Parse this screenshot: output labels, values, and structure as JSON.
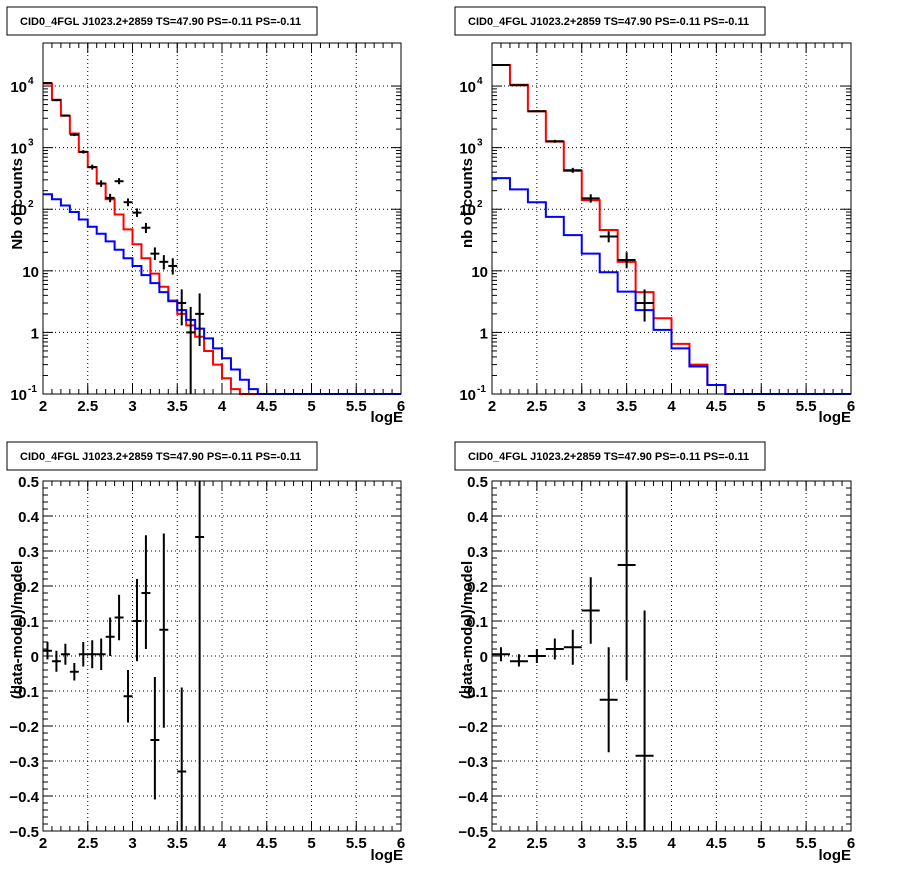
{
  "colors": {
    "data": "#000000",
    "total_model": "#ff0000",
    "source_model": "#0000ff",
    "grid": "#000000",
    "background": "#ffffff"
  },
  "chart_data": [
    {
      "type": "line",
      "title": "CID0_4FGL J1023.2+2859 TS=47.90 PS=-0.11 PS=-0.11",
      "xlabel": "logE",
      "ylabel": "Nb of counts",
      "log_y": true,
      "xlim": [
        2,
        6
      ],
      "ylim": [
        0.1,
        50000
      ],
      "x_ticks": [
        "2",
        "2.5",
        "3",
        "3.5",
        "4",
        "4.5",
        "5",
        "5.5",
        "6"
      ],
      "y_ticks": [
        "10^{-1}",
        "1",
        "10",
        "10^{2}",
        "10^{3}",
        "10^{4}"
      ],
      "grid": true,
      "bin_edges": [
        2.0,
        2.1,
        2.2,
        2.3,
        2.4,
        2.5,
        2.6,
        2.7,
        2.8,
        2.9,
        3.0,
        3.1,
        3.2,
        3.3,
        3.4,
        3.5,
        3.6,
        3.7,
        3.8,
        3.9,
        4.0,
        4.1,
        4.2,
        4.3,
        4.4,
        4.5,
        4.6,
        4.7,
        4.8,
        4.9,
        5.0,
        5.1,
        5.2,
        5.3,
        5.4,
        5.5,
        5.6,
        5.7,
        5.8,
        5.9,
        6.0
      ],
      "series": [
        {
          "role": "total_model",
          "values": [
            11000,
            6000,
            3300,
            1700,
            850,
            480,
            260,
            145,
            82,
            47,
            27,
            16,
            9,
            5.5,
            3.3,
            2.0,
            1.3,
            0.85,
            0.5,
            0.3,
            0.18,
            0.12,
            0.09,
            0.09,
            0.09,
            0.09,
            0.09,
            0.09,
            0.09,
            0.09,
            0.09,
            0.09,
            0.09,
            0.09,
            0.09,
            0.09,
            0.09,
            0.09,
            0.09,
            0.09
          ]
        },
        {
          "role": "source_model",
          "values": [
            175,
            145,
            115,
            90,
            68,
            52,
            40,
            30,
            22,
            16,
            12,
            8.5,
            6.3,
            4.5,
            3.2,
            2.3,
            1.6,
            1.15,
            0.8,
            0.55,
            0.38,
            0.25,
            0.17,
            0.12,
            0.09,
            0.09,
            0.09,
            0.09,
            0.09,
            0.09,
            0.09,
            0.09,
            0.09,
            0.09,
            0.09,
            0.09,
            0.09,
            0.09,
            0.09,
            0.09
          ]
        }
      ],
      "points": [
        {
          "x": 2.05,
          "y": 11200,
          "lo": 10900,
          "hi": 11500
        },
        {
          "x": 2.15,
          "y": 5900,
          "lo": 5700,
          "hi": 6100
        },
        {
          "x": 2.25,
          "y": 3320,
          "lo": 3200,
          "hi": 3450
        },
        {
          "x": 2.35,
          "y": 1620,
          "lo": 1540,
          "hi": 1700
        },
        {
          "x": 2.45,
          "y": 855,
          "lo": 800,
          "hi": 910
        },
        {
          "x": 2.55,
          "y": 485,
          "lo": 440,
          "hi": 530
        },
        {
          "x": 2.65,
          "y": 262,
          "lo": 230,
          "hi": 295
        },
        {
          "x": 2.75,
          "y": 153,
          "lo": 130,
          "hi": 178
        },
        {
          "x": 2.85,
          "y": 285,
          "lo": 255,
          "hi": 320
        },
        {
          "x": 2.95,
          "y": 130,
          "lo": 112,
          "hi": 150
        },
        {
          "x": 3.05,
          "y": 88,
          "lo": 75,
          "hi": 103
        },
        {
          "x": 3.15,
          "y": 50,
          "lo": 41,
          "hi": 60
        },
        {
          "x": 3.25,
          "y": 19,
          "lo": 15,
          "hi": 24
        },
        {
          "x": 3.35,
          "y": 14,
          "lo": 10.5,
          "hi": 18
        },
        {
          "x": 3.45,
          "y": 12,
          "lo": 8.7,
          "hi": 16
        },
        {
          "x": 3.55,
          "y": 3,
          "lo": 1.3,
          "hi": 5
        },
        {
          "x": 3.65,
          "y": 1,
          "lo": 0.1,
          "hi": 2.6
        },
        {
          "x": 3.75,
          "y": 2,
          "lo": 0.6,
          "hi": 4.3
        }
      ]
    },
    {
      "type": "line",
      "title": "CID0_4FGL J1023.2+2859 TS=47.90 PS=-0.11 PS=-0.11",
      "xlabel": "logE",
      "ylabel": "nb of counts",
      "log_y": true,
      "xlim": [
        2,
        6
      ],
      "ylim": [
        0.1,
        50000
      ],
      "x_ticks": [
        "2",
        "2.5",
        "3",
        "3.5",
        "4",
        "4.5",
        "5",
        "5.5",
        "6"
      ],
      "y_ticks": [
        "10^{-1}",
        "1",
        "10",
        "10^{2}",
        "10^{3}",
        "10^{4}"
      ],
      "grid": true,
      "bin_edges": [
        2.0,
        2.2,
        2.4,
        2.6,
        2.8,
        3.0,
        3.2,
        3.4,
        3.6,
        3.8,
        4.0,
        4.2,
        4.4,
        4.6,
        4.8,
        5.0,
        5.2,
        5.4,
        5.6,
        5.8,
        6.0
      ],
      "series": [
        {
          "role": "total_model",
          "values": [
            22000,
            10500,
            3900,
            1250,
            420,
            140,
            46,
            14,
            4.5,
            1.7,
            0.65,
            0.3,
            0.14,
            0.09,
            0.09,
            0.09,
            0.09,
            0.09,
            0.09,
            0.09
          ]
        },
        {
          "role": "source_model",
          "values": [
            320,
            210,
            130,
            75,
            38,
            19,
            9.5,
            4.6,
            2.3,
            1.1,
            0.55,
            0.28,
            0.14,
            0.09,
            0.09,
            0.09,
            0.09,
            0.09,
            0.09,
            0.09
          ]
        }
      ],
      "points": [
        {
          "x": 2.1,
          "y": 22000,
          "lo": 21500,
          "hi": 22500
        },
        {
          "x": 2.3,
          "y": 10300,
          "lo": 10000,
          "hi": 10600
        },
        {
          "x": 2.5,
          "y": 3900,
          "lo": 3780,
          "hi": 4030
        },
        {
          "x": 2.7,
          "y": 1270,
          "lo": 1200,
          "hi": 1340
        },
        {
          "x": 2.9,
          "y": 430,
          "lo": 390,
          "hi": 470
        },
        {
          "x": 3.1,
          "y": 150,
          "lo": 128,
          "hi": 175
        },
        {
          "x": 3.3,
          "y": 36,
          "lo": 29,
          "hi": 44
        },
        {
          "x": 3.5,
          "y": 15,
          "lo": 11,
          "hi": 20
        },
        {
          "x": 3.7,
          "y": 3,
          "lo": 1.5,
          "hi": 5
        }
      ]
    },
    {
      "type": "scatter",
      "title": "CID0_4FGL J1023.2+2859 TS=47.90 PS=-0.11 PS=-0.11",
      "xlabel": "logE",
      "ylabel": "(data-model)/model",
      "xlim": [
        2,
        6
      ],
      "ylim": [
        -0.5,
        0.5
      ],
      "x_ticks": [
        "2",
        "2.5",
        "3",
        "3.5",
        "4",
        "4.5",
        "5",
        "5.5",
        "6"
      ],
      "y_ticks": [
        "−0.5",
        "−0.4",
        "−0.3",
        "−0.2",
        "−0.1",
        "0",
        "0.1",
        "0.2",
        "0.3",
        "0.4",
        "0.5"
      ],
      "grid": true,
      "points": [
        {
          "x": 2.05,
          "xw": 0.05,
          "y": 0.015,
          "lo": -0.01,
          "hi": 0.04
        },
        {
          "x": 2.15,
          "xw": 0.05,
          "y": -0.015,
          "lo": -0.045,
          "hi": 0.015
        },
        {
          "x": 2.25,
          "xw": 0.05,
          "y": 0.005,
          "lo": -0.025,
          "hi": 0.035
        },
        {
          "x": 2.35,
          "xw": 0.05,
          "y": -0.045,
          "lo": -0.07,
          "hi": -0.02
        },
        {
          "x": 2.45,
          "xw": 0.05,
          "y": 0.005,
          "lo": -0.03,
          "hi": 0.04
        },
        {
          "x": 2.55,
          "xw": 0.05,
          "y": 0.005,
          "lo": -0.035,
          "hi": 0.045
        },
        {
          "x": 2.65,
          "xw": 0.05,
          "y": 0.005,
          "lo": -0.04,
          "hi": 0.05
        },
        {
          "x": 2.75,
          "xw": 0.05,
          "y": 0.055,
          "lo": 0.0,
          "hi": 0.11
        },
        {
          "x": 2.85,
          "xw": 0.05,
          "y": 0.11,
          "lo": 0.045,
          "hi": 0.175
        },
        {
          "x": 2.95,
          "xw": 0.05,
          "y": -0.115,
          "lo": -0.19,
          "hi": -0.04
        },
        {
          "x": 3.05,
          "xw": 0.05,
          "y": 0.1,
          "lo": -0.015,
          "hi": 0.22
        },
        {
          "x": 3.15,
          "xw": 0.05,
          "y": 0.18,
          "lo": 0.02,
          "hi": 0.345
        },
        {
          "x": 3.25,
          "xw": 0.05,
          "y": -0.24,
          "lo": -0.41,
          "hi": -0.06
        },
        {
          "x": 3.35,
          "xw": 0.05,
          "y": 0.075,
          "lo": -0.205,
          "hi": 0.35
        },
        {
          "x": 3.55,
          "xw": 0.05,
          "y": -0.33,
          "lo": -0.5,
          "hi": -0.09
        },
        {
          "x": 3.75,
          "xw": 0.05,
          "y": 0.34,
          "lo": -0.5,
          "hi": 0.5
        }
      ]
    },
    {
      "type": "scatter",
      "title": "CID0_4FGL J1023.2+2859 TS=47.90 PS=-0.11 PS=-0.11",
      "xlabel": "logE",
      "ylabel": "(data-model)/model",
      "xlim": [
        2,
        6
      ],
      "ylim": [
        -0.5,
        0.5
      ],
      "x_ticks": [
        "2",
        "2.5",
        "3",
        "3.5",
        "4",
        "4.5",
        "5",
        "5.5",
        "6"
      ],
      "y_ticks": [
        "−0.5",
        "−0.4",
        "−0.3",
        "−0.2",
        "−0.1",
        "0",
        "0.1",
        "0.2",
        "0.3",
        "0.4",
        "0.5"
      ],
      "grid": true,
      "points": [
        {
          "x": 2.1,
          "xw": 0.1,
          "y": 0.005,
          "lo": -0.015,
          "hi": 0.025
        },
        {
          "x": 2.3,
          "xw": 0.1,
          "y": -0.015,
          "lo": -0.03,
          "hi": 0.005
        },
        {
          "x": 2.5,
          "xw": 0.1,
          "y": 0.0,
          "lo": -0.02,
          "hi": 0.02
        },
        {
          "x": 2.7,
          "xw": 0.1,
          "y": 0.02,
          "lo": -0.01,
          "hi": 0.05
        },
        {
          "x": 2.9,
          "xw": 0.1,
          "y": 0.025,
          "lo": -0.025,
          "hi": 0.075
        },
        {
          "x": 3.1,
          "xw": 0.1,
          "y": 0.13,
          "lo": 0.035,
          "hi": 0.225
        },
        {
          "x": 3.3,
          "xw": 0.1,
          "y": -0.125,
          "lo": -0.275,
          "hi": 0.025
        },
        {
          "x": 3.5,
          "xw": 0.1,
          "y": 0.26,
          "lo": -0.07,
          "hi": 0.5
        },
        {
          "x": 3.7,
          "xw": 0.1,
          "y": -0.285,
          "lo": -0.5,
          "hi": 0.13
        }
      ]
    }
  ]
}
